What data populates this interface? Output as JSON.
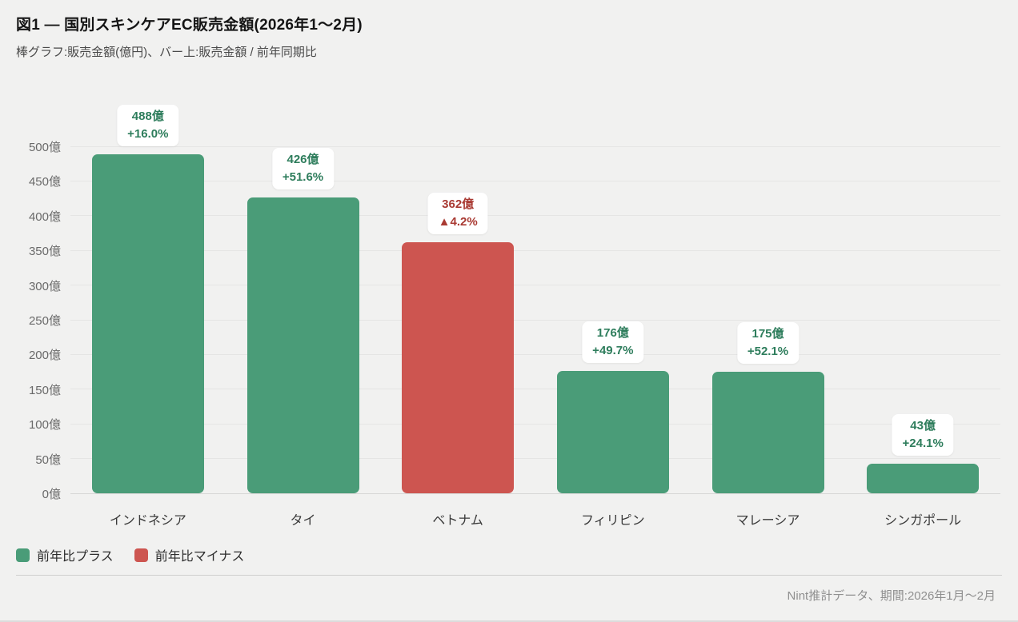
{
  "header": {
    "title": "図1 — 国別スキンケアEC販売金額(2026年1〜2月)",
    "subtitle": "棒グラフ:販売金額(億円)、バー上:販売金額 / 前年同期比"
  },
  "chart_data": {
    "type": "bar",
    "title": "図1 — 国別スキンケアEC販売金額(2026年1〜2月)",
    "categories": [
      "インドネシア",
      "タイ",
      "ベトナム",
      "フィリピン",
      "マレーシア",
      "シンガポール"
    ],
    "values": [
      488,
      426,
      362,
      176,
      175,
      43
    ],
    "yoy_change_pct": [
      16.0,
      51.6,
      -4.2,
      49.7,
      52.1,
      24.1
    ],
    "bar_labels": [
      {
        "value_label": "488億",
        "change_label": "+16.0%",
        "direction": "positive"
      },
      {
        "value_label": "426億",
        "change_label": "+51.6%",
        "direction": "positive"
      },
      {
        "value_label": "362億",
        "change_label": "▲4.2%",
        "direction": "negative"
      },
      {
        "value_label": "176億",
        "change_label": "+49.7%",
        "direction": "positive"
      },
      {
        "value_label": "175億",
        "change_label": "+52.1%",
        "direction": "positive"
      },
      {
        "value_label": "43億",
        "change_label": "+24.1%",
        "direction": "positive"
      }
    ],
    "y_ticks": [
      "0億",
      "50億",
      "100億",
      "150億",
      "200億",
      "250億",
      "300億",
      "350億",
      "400億",
      "450億",
      "500億"
    ],
    "y_tick_values": [
      0,
      50,
      100,
      150,
      200,
      250,
      300,
      350,
      400,
      450,
      500
    ],
    "ylim": [
      0,
      500
    ],
    "grid": true,
    "legend_position": "bottom-left",
    "colors": {
      "positive_bar": "#4a9c78",
      "negative_bar": "#cd5550",
      "positive_text": "#2e7d5c",
      "negative_text": "#a93a33"
    }
  },
  "legend": {
    "items": [
      {
        "label": "前年比プラス",
        "color": "#4a9c78",
        "direction": "positive"
      },
      {
        "label": "前年比マイナス",
        "color": "#cd5550",
        "direction": "negative"
      }
    ]
  },
  "footer": {
    "source": "Nint推計データ、期間:2026年1月〜2月"
  }
}
